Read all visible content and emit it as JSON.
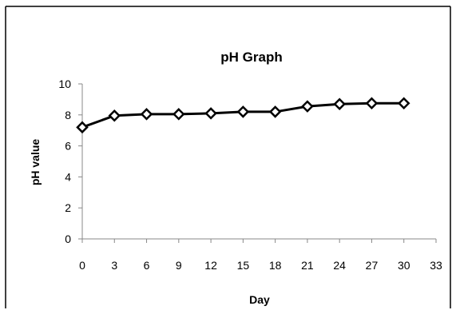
{
  "chart_data": {
    "type": "line",
    "title": "pH Graph",
    "xlabel": "Day",
    "ylabel": "pH value",
    "x": [
      0,
      3,
      6,
      9,
      12,
      15,
      18,
      21,
      24,
      27,
      30
    ],
    "series": [
      {
        "values": [
          7.2,
          7.95,
          8.05,
          8.05,
          8.1,
          8.2,
          8.2,
          8.55,
          8.7,
          8.75,
          8.75
        ]
      }
    ],
    "xlim": [
      0,
      33
    ],
    "ylim": [
      0,
      10
    ],
    "xticks": [
      0,
      3,
      6,
      9,
      12,
      15,
      18,
      21,
      24,
      27,
      30,
      33
    ],
    "yticks": [
      0,
      2,
      4,
      6,
      8,
      10
    ],
    "grid": false,
    "legend": "none",
    "marker": "diamond",
    "line_color": "#000000",
    "marker_fill": "#ffffff"
  }
}
